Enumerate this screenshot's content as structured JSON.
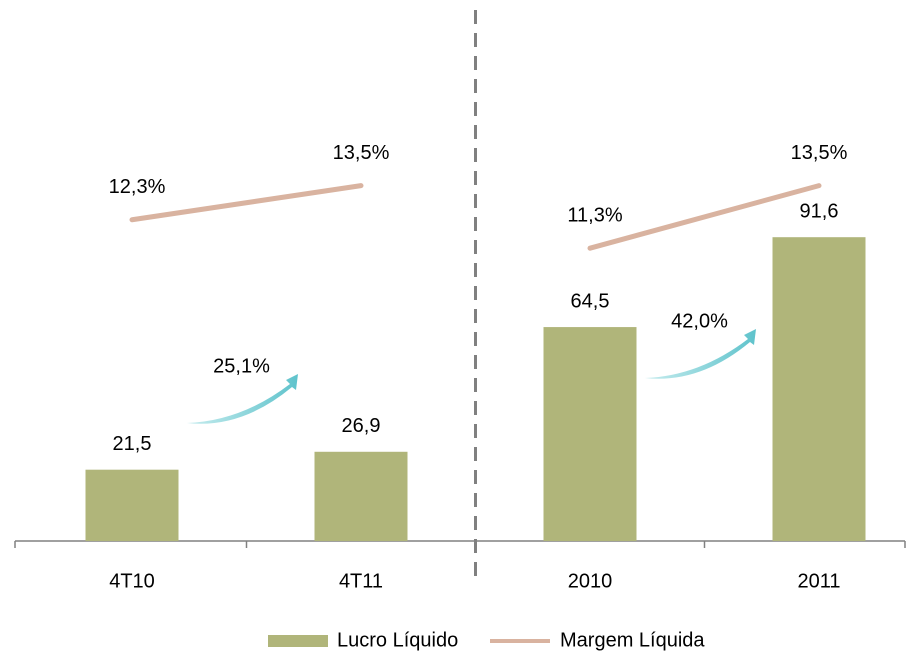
{
  "chart_data": {
    "type": "bar",
    "categories": [
      "4T10",
      "4T11",
      "2010",
      "2011"
    ],
    "group_sizes": [
      2,
      2
    ],
    "series": [
      {
        "name": "Lucro Líquido",
        "type": "bar",
        "color": "#b0b57a",
        "values": [
          21.5,
          26.9,
          64.5,
          91.6
        ],
        "value_labels": [
          "21,5",
          "26,9",
          "64,5",
          "91,6"
        ]
      },
      {
        "name": "Margem Líquida",
        "type": "line",
        "axis": "y2",
        "color": "#d9b3a0",
        "values": [
          12.3,
          13.5,
          11.3,
          13.5
        ],
        "value_labels": [
          "12,3%",
          "13,5%",
          "11,3%",
          "13,5%"
        ]
      }
    ],
    "growth": [
      {
        "value": 25.1,
        "label": "25,1%"
      },
      {
        "value": 42.0,
        "label": "42,0%"
      }
    ],
    "ylim": [
      0,
      120
    ],
    "y2lim": [
      1,
      15
    ],
    "legend": "bottom"
  }
}
